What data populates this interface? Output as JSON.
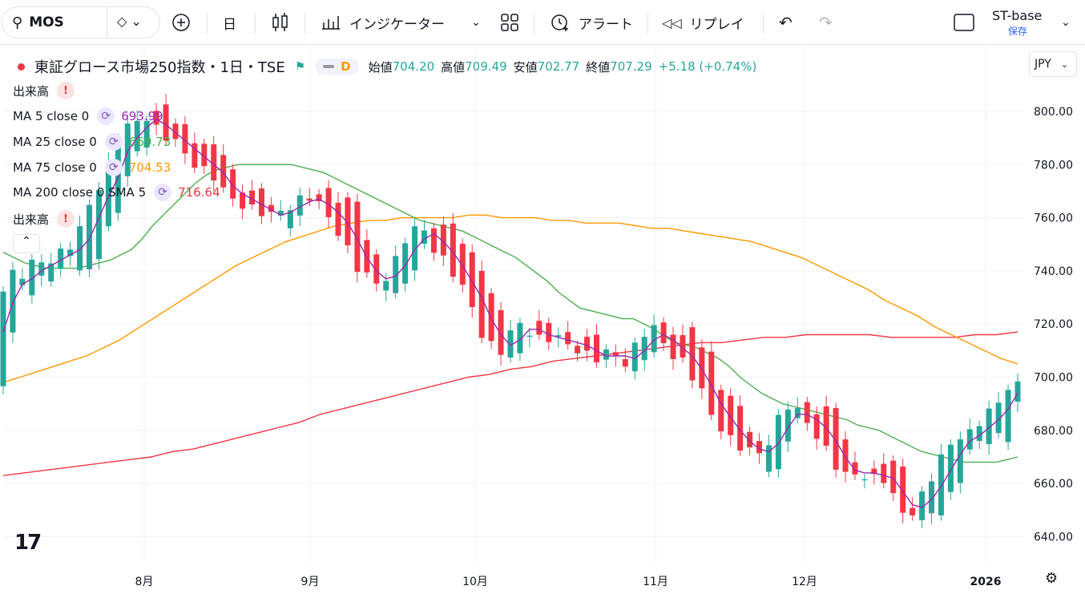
{
  "toolbar": {
    "symbol": "MOS",
    "interval": "日",
    "indicators": "インジケーター",
    "alert": "アラート",
    "replay": "リプレイ",
    "layout_name": "ST-base",
    "save": "保存"
  },
  "header": {
    "title": "東証グロース市場250指数・1日・TSE",
    "flag": "D",
    "open_label": "始値",
    "open": "704.20",
    "high_label": "高値",
    "high": "709.49",
    "low_label": "安値",
    "low": "702.77",
    "close_label": "終値",
    "close": "707.29",
    "change": "+5.18 (+0.74%)",
    "currency": "JPY"
  },
  "legend": {
    "volume1": "出来高",
    "ma5_label": "MA 5 close 0",
    "ma5_value": "693.99",
    "ma25_label": "MA 25 close 0",
    "ma25_value": "669.73",
    "ma75_label": "MA 75 close 0",
    "ma75_value": "704.53",
    "ma200_label": "MA 200 close 0 SMA 5",
    "ma200_value": "716.64",
    "volume2": "出来高"
  },
  "colors": {
    "up": "#26a69a",
    "down": "#f23645",
    "ma5": "#9c27b0",
    "ma25": "#4caf50",
    "ma75": "#ff9800",
    "ma200": "#f23645"
  },
  "chart_data": {
    "type": "candlestick",
    "y_ticks": [
      "800.00",
      "780.00",
      "760.00",
      "740.00",
      "720.00",
      "700.00",
      "680.00",
      "660.00",
      "640.00"
    ],
    "ylim": [
      632,
      822
    ],
    "x_labels": [
      "8月",
      "9月",
      "10月",
      "11月",
      "12月",
      "2026"
    ],
    "ma5": [
      717,
      728,
      735,
      737,
      740,
      742,
      744,
      746,
      748,
      752,
      760,
      768,
      775,
      785,
      790,
      794,
      797,
      795,
      792,
      789,
      786,
      783,
      780,
      777,
      772,
      769,
      767,
      765,
      763,
      761,
      762,
      764,
      766,
      767,
      765,
      762,
      758,
      752,
      745,
      740,
      737,
      738,
      742,
      748,
      752,
      754,
      751,
      747,
      742,
      736,
      730,
      722,
      716,
      712,
      714,
      718,
      718,
      716,
      715,
      714,
      713,
      712,
      710,
      708,
      708,
      708,
      707,
      710,
      714,
      716,
      714,
      711,
      708,
      703,
      697,
      690,
      685,
      680,
      676,
      673,
      672,
      675,
      681,
      686,
      686,
      684,
      681,
      676,
      670,
      665,
      664,
      664,
      663,
      662,
      657,
      652,
      651,
      654,
      659,
      665,
      671,
      676,
      678,
      681,
      684,
      688,
      694
    ],
    "ma25": [
      747,
      745,
      743,
      742,
      741,
      741,
      741,
      741,
      742,
      743,
      744,
      746,
      748,
      752,
      757,
      761,
      765,
      769,
      773,
      776,
      778,
      779,
      780,
      780,
      780,
      780,
      780,
      780,
      779,
      778,
      777,
      775,
      773,
      771,
      769,
      767,
      765,
      763,
      761,
      759,
      758,
      757,
      756,
      755,
      753,
      751,
      749,
      747,
      745,
      742,
      739,
      736,
      732,
      729,
      726,
      725,
      724,
      723,
      722,
      722,
      720,
      718,
      715,
      713,
      712,
      711,
      709,
      707,
      704,
      700,
      697,
      694,
      692,
      690,
      689,
      688,
      687,
      686,
      685,
      684,
      682,
      681,
      680,
      678,
      676,
      674,
      672,
      671,
      670,
      669,
      668,
      668,
      668,
      668,
      669,
      670
    ],
    "ma75": [
      698,
      700,
      702,
      704,
      706,
      708,
      711,
      714,
      718,
      722,
      726,
      730,
      734,
      738,
      742,
      745,
      748,
      751,
      753,
      755,
      757,
      758,
      759,
      759,
      760,
      760,
      760,
      760,
      761,
      761,
      760,
      760,
      760,
      759,
      759,
      758,
      758,
      758,
      757,
      756,
      756,
      755,
      754,
      753,
      752,
      751,
      749,
      747,
      745,
      742,
      739,
      736,
      733,
      729,
      726,
      723,
      719,
      716,
      713,
      710,
      707,
      705
    ],
    "ma200": [
      663,
      664,
      665,
      666,
      667,
      668,
      669,
      670,
      672,
      673,
      675,
      677,
      679,
      681,
      683,
      686,
      688,
      690,
      692,
      694,
      696,
      698,
      700,
      701,
      703,
      704,
      706,
      707,
      708,
      709,
      710,
      711,
      712,
      713,
      713,
      714,
      715,
      715,
      716,
      716,
      716,
      716,
      715,
      715,
      715,
      715,
      716,
      716,
      717
    ],
    "candles": [
      [
        707,
        718,
        706,
        722
      ],
      [
        727,
        734,
        725,
        737
      ],
      [
        745,
        737,
        734,
        748
      ],
      [
        747,
        752,
        744,
        754
      ],
      [
        750,
        742,
        741,
        753
      ],
      [
        745,
        730,
        726,
        748
      ],
      [
        735,
        739,
        733,
        741
      ],
      [
        751,
        740,
        739,
        752
      ],
      [
        750,
        746,
        744,
        753
      ],
      [
        744,
        738,
        737,
        752
      ],
      [
        752,
        745,
        743,
        754
      ],
      [
        758,
        748,
        746,
        760
      ],
      [
        762,
        758,
        756,
        765
      ],
      [
        760,
        764,
        758,
        766
      ],
      [
        764,
        761,
        756,
        766
      ],
      [
        761,
        760,
        758,
        762
      ],
      [
        759,
        758,
        758,
        761
      ],
      [
        760,
        759,
        757,
        762
      ],
      [
        761,
        757,
        757,
        763
      ]
    ]
  }
}
